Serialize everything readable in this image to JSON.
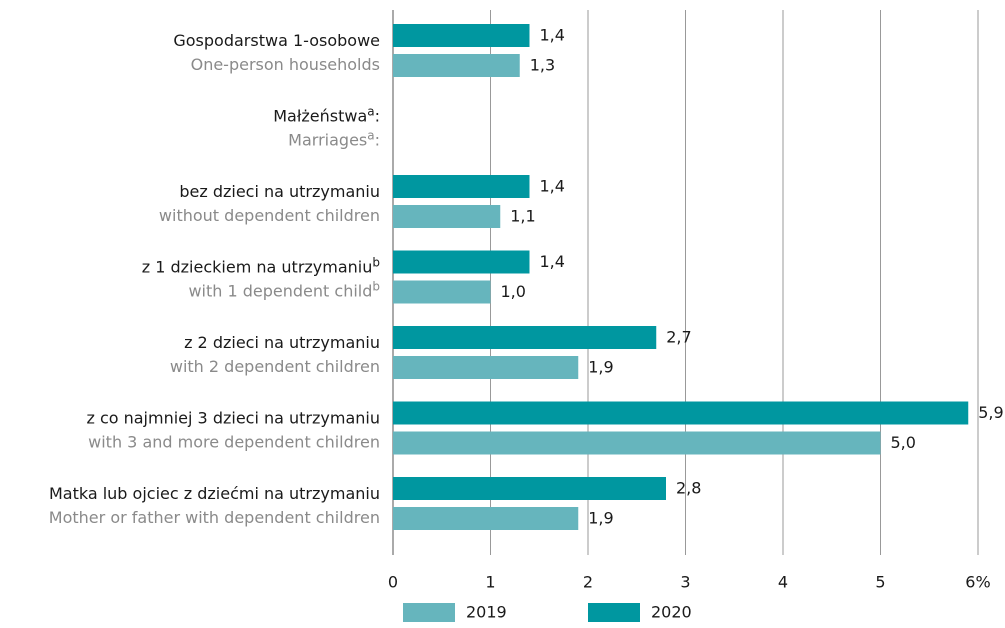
{
  "chart_data": {
    "type": "bar",
    "orientation": "horizontal",
    "categories": [
      {
        "pl": "Gospodarstwa 1-osobowe",
        "en": "One-person households"
      },
      {
        "pl": "Małżeństwa",
        "en": "Marriages",
        "note": "a",
        "colon": ":"
      },
      {
        "pl": "bez dzieci na utrzymaniu",
        "en": "without dependent children"
      },
      {
        "pl": "z 1 dzieckiem na utrzymaniu",
        "en": "with 1 dependent child",
        "note": "b"
      },
      {
        "pl": "z 2 dzieci na utrzymaniu",
        "en": "with 2 dependent children"
      },
      {
        "pl": "z co najmniej 3 dzieci na utrzymaniu",
        "en": "with 3 and more dependent children"
      },
      {
        "pl": "Matka lub ojciec z dziećmi na utrzymaniu",
        "en": "Mother or father with dependent children"
      }
    ],
    "series": [
      {
        "name": "2019",
        "color": "#66b5bd",
        "values": [
          1.3,
          null,
          1.1,
          1.0,
          1.9,
          5.0,
          1.9
        ],
        "value_labels": [
          "1,3",
          null,
          "1,1",
          "1,0",
          "1,9",
          "5,0",
          "1,9"
        ]
      },
      {
        "name": "2020",
        "color": "#0097a0",
        "values": [
          1.4,
          null,
          1.4,
          1.4,
          2.7,
          5.9,
          2.8
        ],
        "value_labels": [
          "1,4",
          null,
          "1,4",
          "1,4",
          "2,7",
          "5,9",
          "2,8"
        ]
      }
    ],
    "xlim": [
      0,
      6
    ],
    "xticks": [
      0,
      1,
      2,
      3,
      4,
      5,
      {
        "value": 6,
        "label": "6%"
      }
    ],
    "grid": true,
    "legend": "bottom"
  }
}
